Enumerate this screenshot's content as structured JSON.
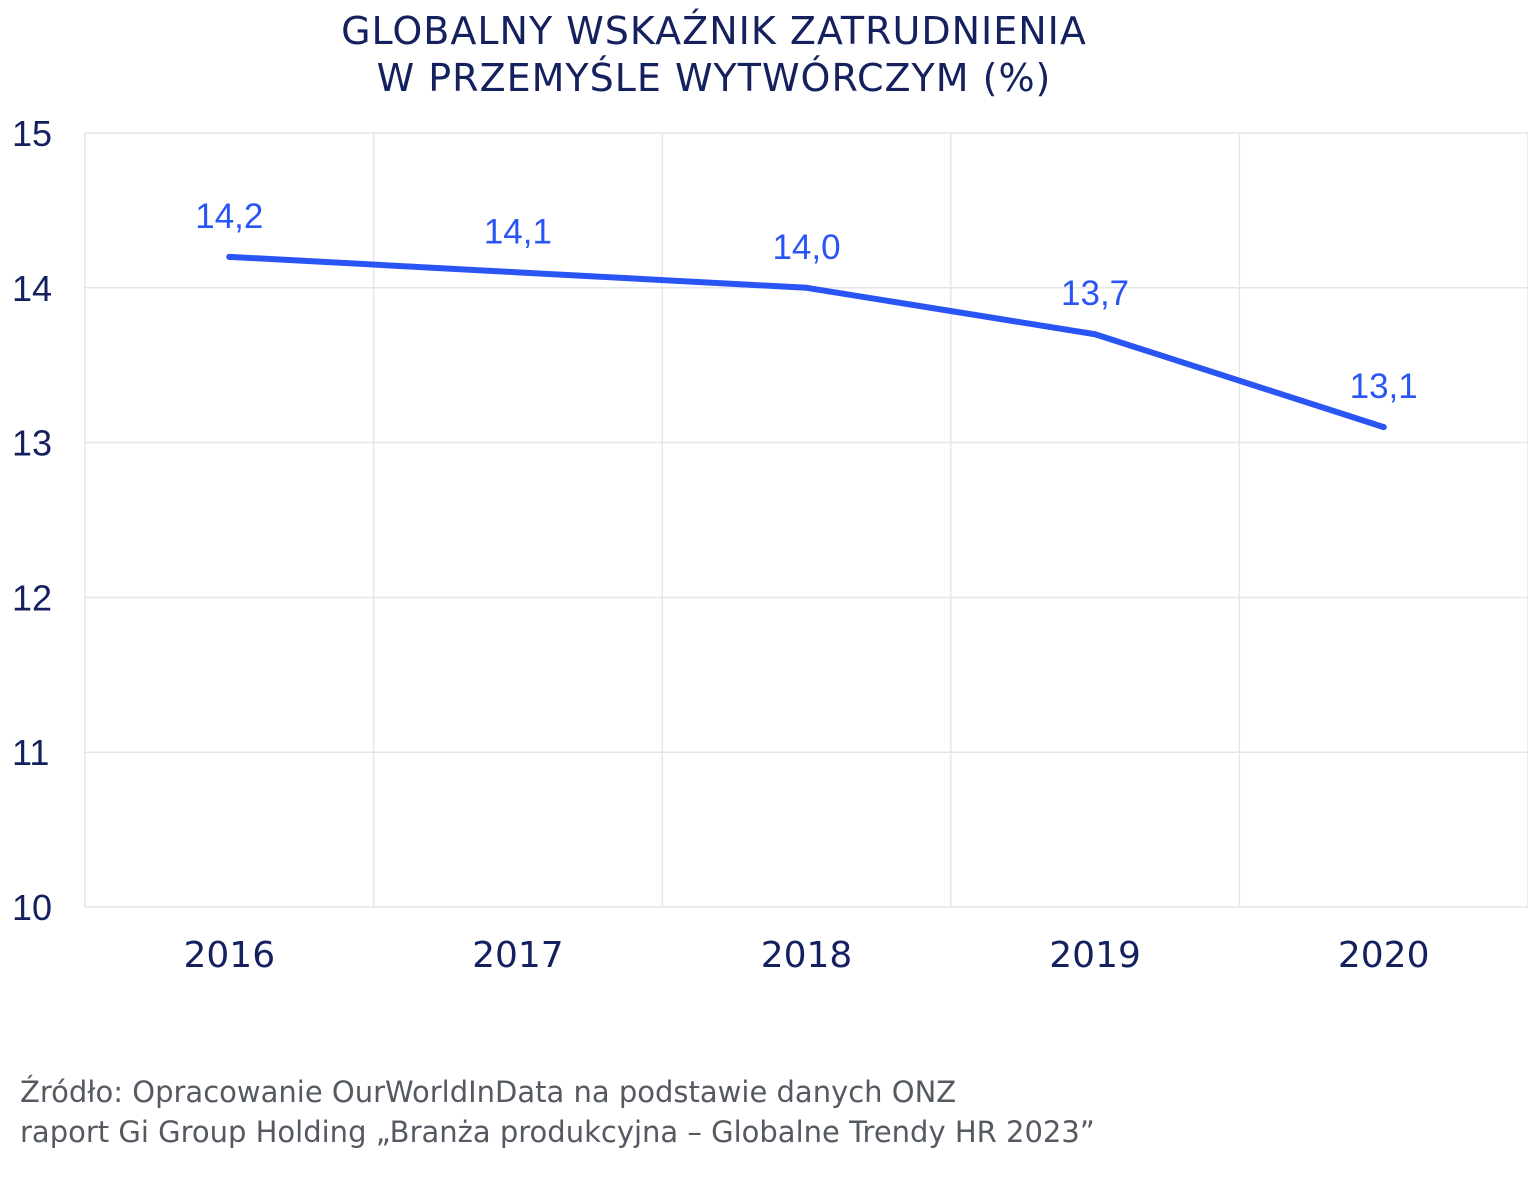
{
  "title_lines": [
    "GLOBALNY WSKAŹNIK ZATRUDNIENIA",
    "W PRZEMYŚLE WYTWÓRCZYM (%)"
  ],
  "source_lines": [
    "Źródło: Opracowanie OurWorldInData na podstawie danych ONZ",
    "raport Gi Group Holding „Branża produkcyjna – Globalne Trendy HR 2023”"
  ],
  "chart_data": {
    "type": "line",
    "title": "GLOBALNY WSKAŹNIK ZATRUDNIENIA W PRZEMYŚLE WYTWÓRCZYM (%)",
    "xlabel": "",
    "ylabel": "",
    "categories": [
      "2016",
      "2017",
      "2018",
      "2019",
      "2020"
    ],
    "series": [
      {
        "values": [
          14.2,
          14.1,
          14.0,
          13.7,
          13.1
        ],
        "data_labels": [
          "14,2",
          "14,1",
          "14,0",
          "13,7",
          "13,1"
        ],
        "color": "#2a55f5"
      }
    ],
    "ylim": [
      10,
      15
    ],
    "yticks": [
      "10",
      "11",
      "12",
      "13",
      "14",
      "15"
    ],
    "grid": true,
    "legend": "none"
  },
  "colors": {
    "line": "#2a55f5",
    "axis_text": "#15205e",
    "grid": "#e4e6ea"
  }
}
